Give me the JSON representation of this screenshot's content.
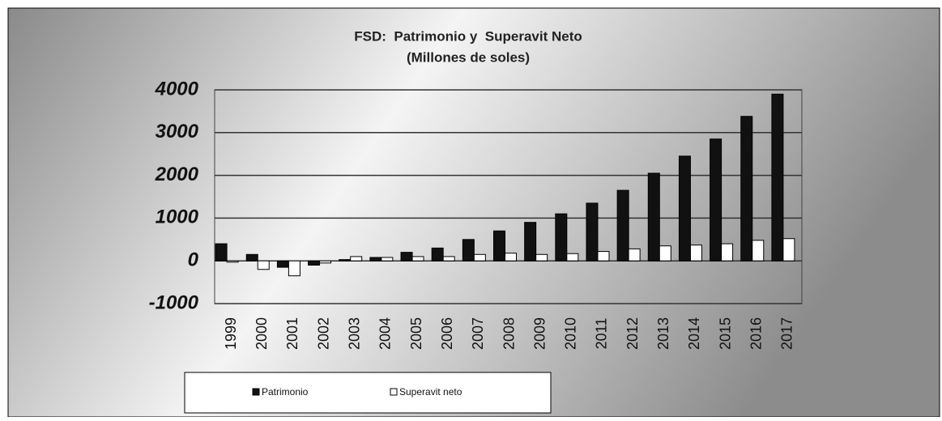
{
  "chart_data": {
    "type": "bar",
    "title": "FSD:  Patrimonio y  Superavit Neto",
    "subtitle": "(Millones de soles)",
    "categories": [
      "1999",
      "2000",
      "2001",
      "2002",
      "2003",
      "2004",
      "2005",
      "2006",
      "2007",
      "2008",
      "2009",
      "2010",
      "2011",
      "2012",
      "2013",
      "2014",
      "2015",
      "2016",
      "2017"
    ],
    "series": [
      {
        "name": "Patrimonio",
        "color": "#111111",
        "values": [
          400,
          150,
          -150,
          -100,
          30,
          80,
          200,
          300,
          500,
          700,
          900,
          1100,
          1350,
          1650,
          2050,
          2450,
          2850,
          3380,
          3900
        ]
      },
      {
        "name": "Superavit neto",
        "color": "#ffffff",
        "values": [
          -30,
          -200,
          -350,
          -50,
          100,
          80,
          100,
          100,
          150,
          180,
          150,
          170,
          220,
          280,
          350,
          370,
          400,
          480,
          520
        ]
      }
    ],
    "ylim": [
      -1000,
      4000
    ],
    "yticks": [
      -1000,
      0,
      1000,
      2000,
      3000,
      4000
    ],
    "grid": true
  }
}
